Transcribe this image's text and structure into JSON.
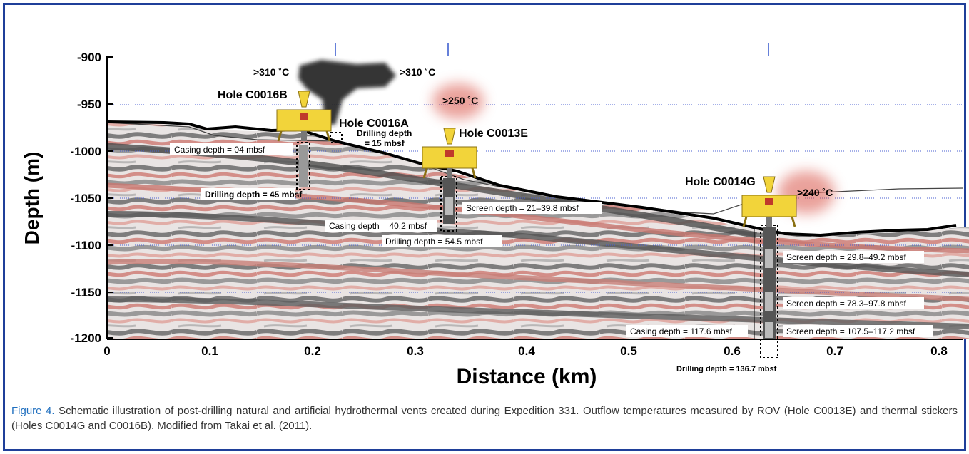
{
  "chart": {
    "ylabel": "Depth (m)",
    "xlabel": "Distance (km)",
    "y_ticks": [
      "-900",
      "-950",
      "-1000",
      "-1050",
      "-1100",
      "-1150",
      "-1200"
    ],
    "x_ticks": [
      "0",
      "0.1",
      "0.2",
      "0.3",
      "0.4",
      "0.5",
      "0.6",
      "0.7",
      "0.8"
    ]
  },
  "holes": {
    "c0016b": {
      "name": "Hole C0016B",
      "temp_left": ">310 ˚C",
      "casing": "Casing depth = 04 mbsf",
      "drilling": "Drilling depth = 45 mbsf"
    },
    "c0016a": {
      "name": "Hole C0016A",
      "drilling_line1": "Drilling depth",
      "drilling_line2": "= 15 mbsf",
      "temp": ">310 ˚C"
    },
    "c0013e": {
      "name": "Hole C0013E",
      "temp": ">250 ˚C",
      "screen": "Screen depth = 21–39.8 mbsf",
      "casing": "Casing depth = 40.2 mbsf",
      "drilling": "Drilling depth = 54.5 mbsf"
    },
    "c0014g": {
      "name": "Hole C0014G",
      "temp": ">240 ˚C",
      "screen1": "Screen depth = 29.8–49.2 mbsf",
      "screen2": "Screen depth = 78.3–97.8 mbsf",
      "screen3": "Screen depth = 107.5–117.2 mbsf",
      "casing": "Casing depth = 117.6 mbsf",
      "drilling": "Drilling depth = 136.7 mbsf"
    }
  },
  "caption": {
    "label": "Figure 4.",
    "text": " Schematic illustration of post-drilling natural and artificial hydrothermal vents created during Expedition 331. Outflow temperatures measured by ROV (Hole C0013E) and thermal stickers (Holes C0014G and C0016B). Modified from Takai et al. (2011)."
  },
  "colors": {
    "frame": "#1f3f99",
    "caption_label": "#1f6fbf",
    "grid": "#4a5fd0",
    "rig_yellow": "#f2d43a",
    "plume_dark": "#222222",
    "plume_red": "#d9544a",
    "seismic_red": "#d98a82",
    "seismic_gray": "#555555"
  }
}
